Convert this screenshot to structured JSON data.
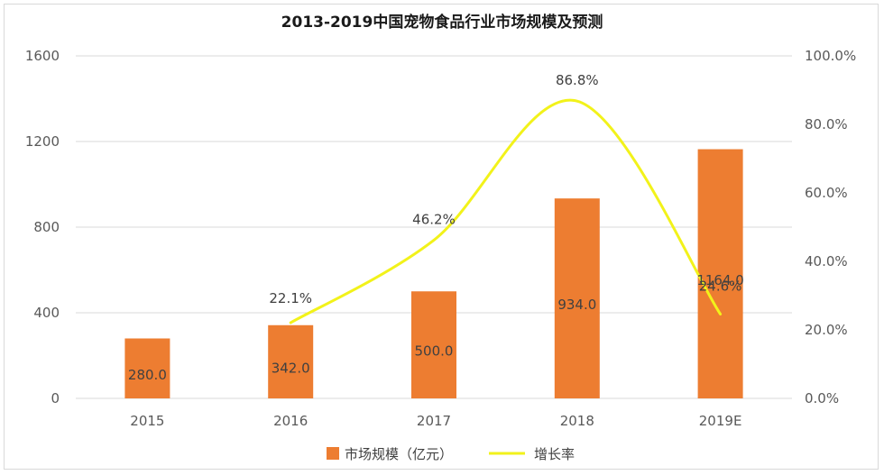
{
  "chart_data": {
    "type": "bar",
    "title": "2013-2019中国宠物食品行业市场规模及预测",
    "categories": [
      "2015",
      "2016",
      "2017",
      "2018",
      "2019E"
    ],
    "series": [
      {
        "name": "市场规模（亿元）",
        "type": "bar",
        "axis": "left",
        "color": "#ed7d31",
        "values": [
          280.0,
          342.0,
          500.0,
          934.0,
          1164.0
        ],
        "labels": [
          "280.0",
          "342.0",
          "500.0",
          "934.0",
          "1164.0"
        ]
      },
      {
        "name": "增长率",
        "type": "line",
        "axis": "right",
        "color": "#f2f21a",
        "values": [
          null,
          22.1,
          46.2,
          86.8,
          24.6
        ],
        "labels": [
          "",
          "22.1%",
          "46.2%",
          "86.8%",
          "24.6%"
        ]
      }
    ],
    "y_left": {
      "min": 0,
      "max": 1600,
      "ticks": [
        "0",
        "400",
        "800",
        "1200",
        "1600"
      ]
    },
    "y_right": {
      "min": 0,
      "max": 100,
      "ticks": [
        "0.0%",
        "20.0%",
        "40.0%",
        "60.0%",
        "80.0%",
        "100.0%"
      ]
    },
    "grid": true,
    "legend_position": "bottom"
  }
}
